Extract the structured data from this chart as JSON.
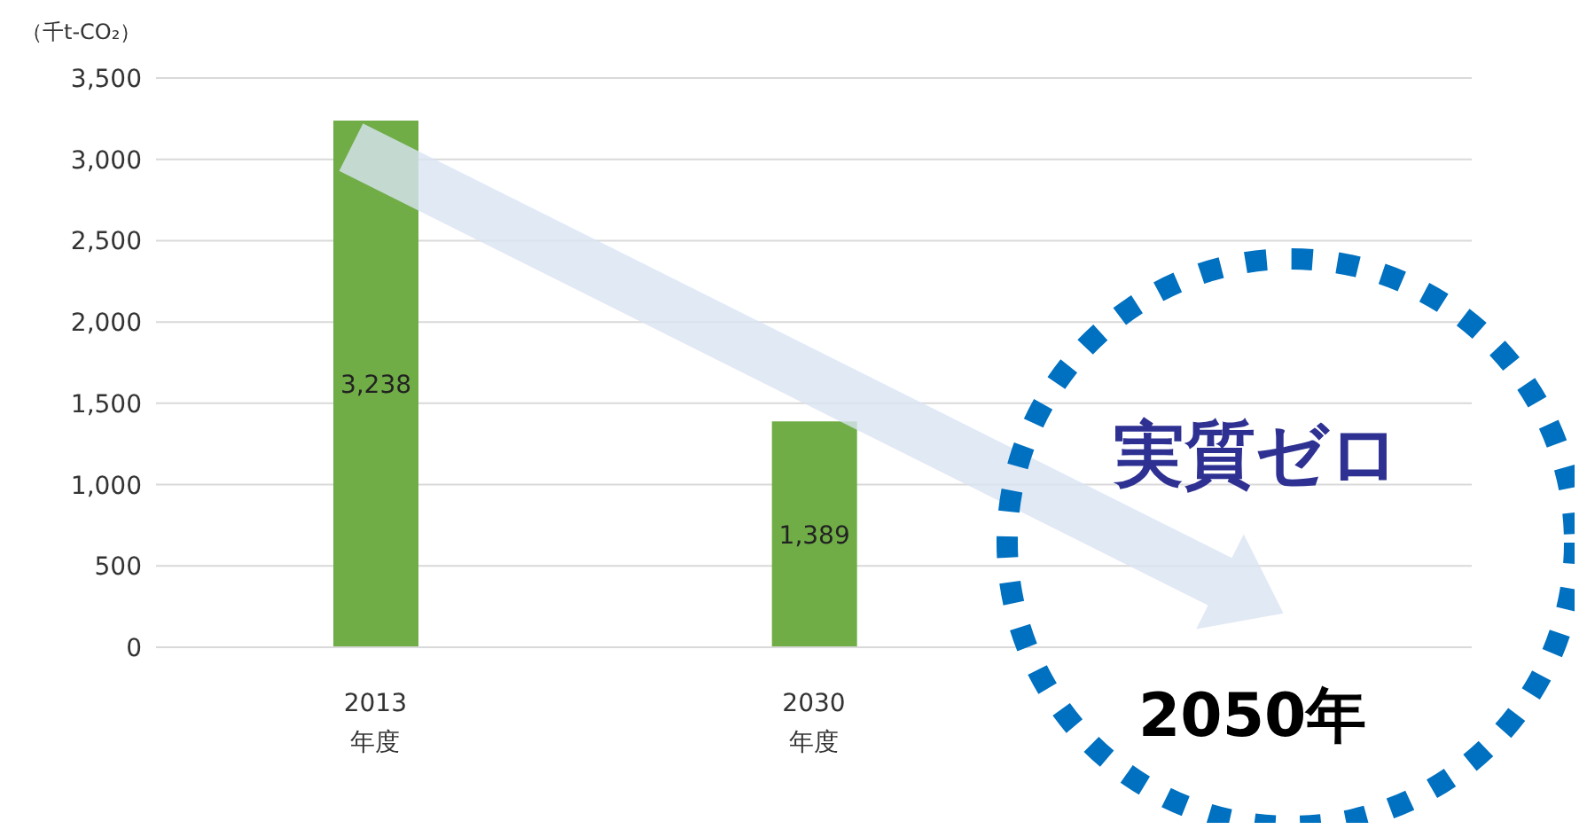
{
  "chart_data": {
    "type": "bar",
    "ylabel": "（千t-CO₂）",
    "categories": [
      "2013\n年度",
      "2030\n年度",
      "2050年"
    ],
    "values": [
      3238,
      1389,
      0
    ],
    "value_labels": [
      "3,238",
      "1,389",
      null
    ],
    "color": "#70ad47",
    "ylim": [
      0,
      3500
    ],
    "yticks": [
      {
        "value": 0,
        "label": "0"
      },
      {
        "value": 500,
        "label": "500"
      },
      {
        "value": 1000,
        "label": "1,000"
      },
      {
        "value": 1500,
        "label": "1,500"
      },
      {
        "value": 2000,
        "label": "2,000"
      },
      {
        "value": 2500,
        "label": "2,500"
      },
      {
        "value": 3000,
        "label": "3,000"
      },
      {
        "value": 3500,
        "label": "3,500"
      }
    ],
    "grid": "y",
    "annotations": [
      "実質ゼロ"
    ]
  }
}
